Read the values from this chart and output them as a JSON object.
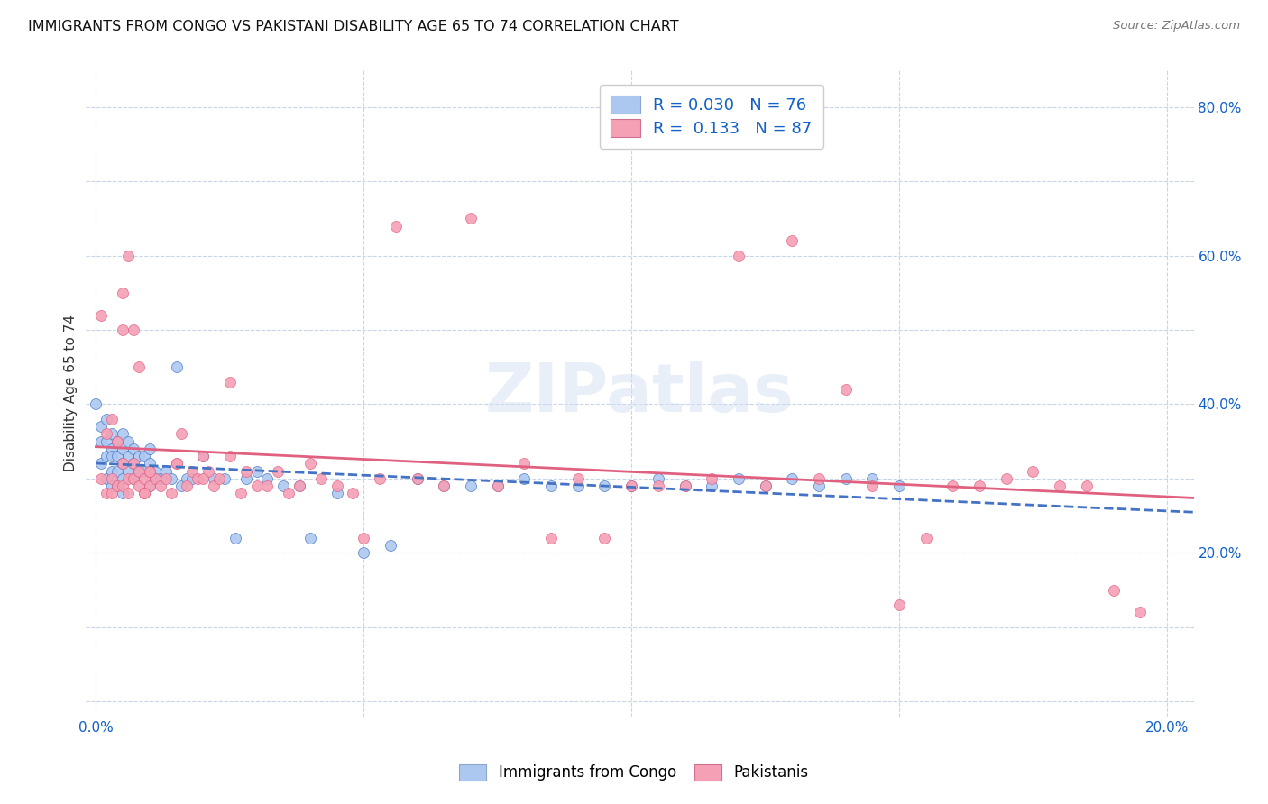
{
  "title": "IMMIGRANTS FROM CONGO VS PAKISTANI DISABILITY AGE 65 TO 74 CORRELATION CHART",
  "source": "Source: ZipAtlas.com",
  "ylabel": "Disability Age 65 to 74",
  "xlim": [
    -0.002,
    0.205
  ],
  "ylim": [
    -0.02,
    0.85
  ],
  "congo_R": 0.03,
  "congo_N": 76,
  "pak_R": 0.133,
  "pak_N": 87,
  "congo_color": "#adc8f0",
  "pak_color": "#f5a0b5",
  "congo_line_color": "#4472c4",
  "pak_line_color": "#e06080",
  "legend_color_blue": "#adc8f0",
  "legend_color_pink": "#f5a0b5",
  "legend_text_color": "#1060c8",
  "watermark": "ZIPatlas",
  "background_color": "#ffffff",
  "grid_color": "#c8d4e8",
  "congo_x": [
    0.0,
    0.001,
    0.001,
    0.001,
    0.002,
    0.002,
    0.002,
    0.002,
    0.003,
    0.003,
    0.003,
    0.003,
    0.003,
    0.004,
    0.004,
    0.004,
    0.004,
    0.005,
    0.005,
    0.005,
    0.005,
    0.005,
    0.006,
    0.006,
    0.006,
    0.007,
    0.007,
    0.007,
    0.008,
    0.008,
    0.009,
    0.009,
    0.01,
    0.01,
    0.01,
    0.011,
    0.011,
    0.012,
    0.013,
    0.014,
    0.015,
    0.016,
    0.017,
    0.018,
    0.02,
    0.022,
    0.024,
    0.026,
    0.028,
    0.03,
    0.032,
    0.035,
    0.038,
    0.04,
    0.045,
    0.05,
    0.055,
    0.06,
    0.065,
    0.07,
    0.075,
    0.08,
    0.085,
    0.09,
    0.095,
    0.1,
    0.105,
    0.11,
    0.115,
    0.12,
    0.125,
    0.13,
    0.135,
    0.14,
    0.145,
    0.15
  ],
  "congo_y": [
    0.4,
    0.37,
    0.35,
    0.32,
    0.38,
    0.35,
    0.33,
    0.3,
    0.36,
    0.34,
    0.33,
    0.31,
    0.29,
    0.35,
    0.33,
    0.31,
    0.29,
    0.36,
    0.34,
    0.32,
    0.3,
    0.28,
    0.35,
    0.33,
    0.31,
    0.34,
    0.32,
    0.3,
    0.33,
    0.31,
    0.33,
    0.31,
    0.34,
    0.32,
    0.29,
    0.31,
    0.3,
    0.3,
    0.31,
    0.3,
    0.45,
    0.29,
    0.3,
    0.3,
    0.33,
    0.3,
    0.3,
    0.22,
    0.3,
    0.31,
    0.3,
    0.29,
    0.29,
    0.22,
    0.28,
    0.2,
    0.21,
    0.3,
    0.29,
    0.29,
    0.29,
    0.3,
    0.29,
    0.29,
    0.29,
    0.29,
    0.3,
    0.29,
    0.29,
    0.3,
    0.29,
    0.3,
    0.29,
    0.3,
    0.3,
    0.29
  ],
  "pak_x": [
    0.001,
    0.001,
    0.002,
    0.002,
    0.003,
    0.003,
    0.003,
    0.004,
    0.004,
    0.005,
    0.005,
    0.005,
    0.006,
    0.006,
    0.007,
    0.007,
    0.008,
    0.008,
    0.009,
    0.009,
    0.01,
    0.01,
    0.011,
    0.012,
    0.013,
    0.014,
    0.015,
    0.016,
    0.017,
    0.018,
    0.019,
    0.02,
    0.021,
    0.022,
    0.023,
    0.025,
    0.027,
    0.028,
    0.03,
    0.032,
    0.034,
    0.036,
    0.038,
    0.04,
    0.042,
    0.045,
    0.048,
    0.05,
    0.053,
    0.056,
    0.06,
    0.065,
    0.07,
    0.075,
    0.08,
    0.085,
    0.09,
    0.095,
    0.1,
    0.105,
    0.11,
    0.115,
    0.12,
    0.125,
    0.13,
    0.135,
    0.14,
    0.145,
    0.15,
    0.155,
    0.16,
    0.165,
    0.17,
    0.175,
    0.18,
    0.185,
    0.19,
    0.195,
    0.005,
    0.006,
    0.007,
    0.008,
    0.009,
    0.01,
    0.015,
    0.02,
    0.025
  ],
  "pak_y": [
    0.52,
    0.3,
    0.36,
    0.28,
    0.38,
    0.3,
    0.28,
    0.35,
    0.29,
    0.32,
    0.5,
    0.29,
    0.3,
    0.28,
    0.32,
    0.3,
    0.29,
    0.31,
    0.28,
    0.3,
    0.31,
    0.29,
    0.3,
    0.29,
    0.3,
    0.28,
    0.32,
    0.36,
    0.29,
    0.31,
    0.3,
    0.33,
    0.31,
    0.29,
    0.3,
    0.43,
    0.28,
    0.31,
    0.29,
    0.29,
    0.31,
    0.28,
    0.29,
    0.32,
    0.3,
    0.29,
    0.28,
    0.22,
    0.3,
    0.64,
    0.3,
    0.29,
    0.65,
    0.29,
    0.32,
    0.22,
    0.3,
    0.22,
    0.29,
    0.29,
    0.29,
    0.3,
    0.6,
    0.29,
    0.62,
    0.3,
    0.42,
    0.29,
    0.13,
    0.22,
    0.29,
    0.29,
    0.3,
    0.31,
    0.29,
    0.29,
    0.15,
    0.12,
    0.55,
    0.6,
    0.5,
    0.45,
    0.28,
    0.31,
    0.32,
    0.3,
    0.33
  ]
}
